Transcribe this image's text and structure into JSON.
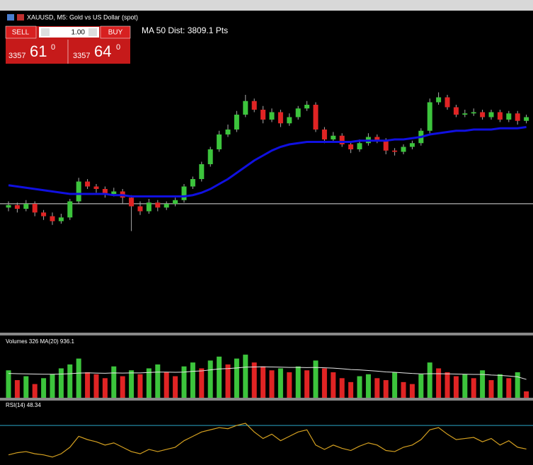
{
  "header": {
    "symbol": "XAUUSD, M5: Gold vs US Dollar (spot)"
  },
  "trade_panel": {
    "sell": "SELL",
    "lots": "1.00",
    "buy": "BUY",
    "bid_big": "3357",
    "bid_digits": "61",
    "bid_sup": "0",
    "ask_big": "3357",
    "ask_digits": "64",
    "ask_sup": "0"
  },
  "chart_data": [
    {
      "type": "candlestick",
      "annotation": "MA 50 Dist: 3809.1 Pts",
      "ylim": [
        3347.2,
        3373.2
      ],
      "up_color": "#3cc43c",
      "down_color": "#e02424",
      "bid_line": 3357.61,
      "candles": [
        [
          3357.3,
          3357.8,
          3357.0,
          3357.5
        ],
        [
          3357.5,
          3357.7,
          3356.9,
          3357.2
        ],
        [
          3357.2,
          3357.9,
          3357.0,
          3357.6
        ],
        [
          3357.6,
          3357.8,
          3356.6,
          3356.9
        ],
        [
          3356.9,
          3357.1,
          3356.3,
          3356.6
        ],
        [
          3356.6,
          3356.9,
          3355.9,
          3356.2
        ],
        [
          3356.2,
          3356.8,
          3356.0,
          3356.5
        ],
        [
          3356.5,
          3358.0,
          3356.3,
          3357.8
        ],
        [
          3357.8,
          3359.7,
          3357.6,
          3359.4
        ],
        [
          3359.4,
          3359.6,
          3358.8,
          3359.0
        ],
        [
          3359.0,
          3359.2,
          3358.5,
          3358.8
        ],
        [
          3358.8,
          3359.0,
          3358.1,
          3358.4
        ],
        [
          3358.4,
          3358.9,
          3358.2,
          3358.6
        ],
        [
          3358.6,
          3358.8,
          3357.6,
          3358.1
        ],
        [
          3358.1,
          3358.3,
          3355.4,
          3357.4
        ],
        [
          3357.4,
          3357.8,
          3356.7,
          3357.0
        ],
        [
          3357.0,
          3358.0,
          3356.8,
          3357.7
        ],
        [
          3357.7,
          3357.9,
          3357.0,
          3357.3
        ],
        [
          3357.3,
          3357.8,
          3357.1,
          3357.6
        ],
        [
          3357.6,
          3358.1,
          3357.4,
          3357.9
        ],
        [
          3357.9,
          3359.2,
          3357.7,
          3359.0
        ],
        [
          3359.0,
          3359.8,
          3358.8,
          3359.6
        ],
        [
          3359.6,
          3361.0,
          3359.4,
          3360.8
        ],
        [
          3360.8,
          3362.2,
          3360.6,
          3362.0
        ],
        [
          3362.0,
          3363.5,
          3361.8,
          3363.2
        ],
        [
          3363.2,
          3364.0,
          3363.0,
          3363.6
        ],
        [
          3363.6,
          3365.1,
          3363.4,
          3364.8
        ],
        [
          3364.8,
          3366.4,
          3364.6,
          3365.9
        ],
        [
          3365.9,
          3366.1,
          3365.0,
          3365.2
        ],
        [
          3365.2,
          3365.5,
          3364.1,
          3364.4
        ],
        [
          3364.4,
          3365.3,
          3364.2,
          3365.0
        ],
        [
          3365.0,
          3365.2,
          3363.8,
          3364.1
        ],
        [
          3364.1,
          3364.9,
          3363.9,
          3364.6
        ],
        [
          3364.6,
          3365.5,
          3364.4,
          3365.3
        ],
        [
          3365.3,
          3365.9,
          3365.1,
          3365.6
        ],
        [
          3365.6,
          3365.8,
          3363.4,
          3363.6
        ],
        [
          3363.6,
          3363.8,
          3362.5,
          3362.8
        ],
        [
          3362.8,
          3363.4,
          3362.6,
          3363.1
        ],
        [
          3363.1,
          3363.3,
          3362.2,
          3362.4
        ],
        [
          3362.4,
          3362.6,
          3361.7,
          3362.0
        ],
        [
          3362.0,
          3362.8,
          3361.8,
          3362.5
        ],
        [
          3362.5,
          3363.3,
          3362.3,
          3363.0
        ],
        [
          3363.0,
          3363.2,
          3362.5,
          3362.7
        ],
        [
          3362.7,
          3362.9,
          3361.6,
          3361.9
        ],
        [
          3361.9,
          3362.1,
          3361.5,
          3361.8
        ],
        [
          3361.8,
          3362.4,
          3361.6,
          3362.2
        ],
        [
          3362.2,
          3362.7,
          3362.0,
          3362.5
        ],
        [
          3362.5,
          3363.7,
          3362.3,
          3363.5
        ],
        [
          3363.5,
          3366.1,
          3363.3,
          3365.8
        ],
        [
          3365.8,
          3366.6,
          3365.6,
          3366.2
        ],
        [
          3366.2,
          3366.4,
          3365.2,
          3365.4
        ],
        [
          3365.4,
          3365.6,
          3364.6,
          3364.8
        ],
        [
          3364.8,
          3365.2,
          3364.6,
          3364.9
        ],
        [
          3364.9,
          3365.3,
          3364.7,
          3365.0
        ],
        [
          3365.0,
          3365.2,
          3364.4,
          3364.6
        ],
        [
          3364.6,
          3365.2,
          3364.4,
          3365.0
        ],
        [
          3365.0,
          3365.2,
          3364.2,
          3364.4
        ],
        [
          3364.4,
          3365.1,
          3364.2,
          3364.9
        ],
        [
          3364.9,
          3365.1,
          3364.0,
          3364.3
        ],
        [
          3364.3,
          3364.8,
          3364.1,
          3364.6
        ]
      ],
      "ma": {
        "color": "#1010e0",
        "values": [
          3359.1,
          3359.0,
          3358.9,
          3358.8,
          3358.7,
          3358.6,
          3358.5,
          3358.4,
          3358.4,
          3358.4,
          3358.4,
          3358.4,
          3358.3,
          3358.3,
          3358.2,
          3358.2,
          3358.2,
          3358.2,
          3358.2,
          3358.2,
          3358.2,
          3358.3,
          3358.5,
          3358.8,
          3359.2,
          3359.6,
          3360.1,
          3360.6,
          3361.1,
          3361.5,
          3361.9,
          3362.2,
          3362.4,
          3362.5,
          3362.6,
          3362.6,
          3362.6,
          3362.6,
          3362.6,
          3362.6,
          3362.7,
          3362.7,
          3362.7,
          3362.7,
          3362.8,
          3362.8,
          3362.9,
          3363.0,
          3363.2,
          3363.3,
          3363.4,
          3363.5,
          3363.5,
          3363.6,
          3363.6,
          3363.6,
          3363.7,
          3363.7,
          3363.7,
          3363.8
        ]
      }
    },
    {
      "type": "bar",
      "title": "Volumes 326 MA(20) 936.1",
      "ylim": [
        0,
        2600
      ],
      "up_color": "#3cc43c",
      "down_color": "#e02424",
      "ma_color": "#e8e8e8",
      "values": [
        1400,
        900,
        1100,
        700,
        1000,
        1200,
        1500,
        1700,
        2000,
        1300,
        1200,
        1000,
        1600,
        1100,
        1400,
        1200,
        1500,
        1700,
        1300,
        1100,
        1600,
        1800,
        1500,
        1900,
        2100,
        1700,
        2000,
        2200,
        1800,
        1600,
        1400,
        1500,
        1300,
        1600,
        1400,
        1900,
        1500,
        1300,
        1000,
        800,
        1100,
        1200,
        1000,
        900,
        1300,
        800,
        700,
        1200,
        1800,
        1500,
        1300,
        1100,
        1200,
        1000,
        1400,
        900,
        1200,
        1000,
        1300,
        326
      ],
      "ma_values": [
        1240,
        1230,
        1220,
        1210,
        1200,
        1200,
        1210,
        1230,
        1260,
        1270,
        1260,
        1250,
        1270,
        1260,
        1270,
        1270,
        1290,
        1310,
        1310,
        1300,
        1310,
        1350,
        1370,
        1420,
        1470,
        1490,
        1520,
        1560,
        1570,
        1580,
        1570,
        1560,
        1550,
        1550,
        1540,
        1550,
        1530,
        1510,
        1480,
        1440,
        1420,
        1390,
        1360,
        1320,
        1300,
        1270,
        1240,
        1220,
        1230,
        1230,
        1220,
        1210,
        1200,
        1190,
        1190,
        1160,
        1140,
        1110,
        1070,
        936.1
      ]
    },
    {
      "type": "line",
      "title": "RSI(14) 48.34",
      "ylim": [
        35,
        85
      ],
      "levels": [
        70
      ],
      "color": "#d4a020",
      "level_color": "#2aa7c7",
      "values": [
        43,
        45,
        46,
        44,
        43,
        41,
        44,
        50,
        60,
        57,
        55,
        52,
        54,
        50,
        46,
        44,
        48,
        46,
        48,
        50,
        56,
        60,
        64,
        66,
        68,
        67,
        70,
        72,
        64,
        58,
        62,
        56,
        60,
        64,
        66,
        52,
        48,
        52,
        49,
        47,
        51,
        54,
        52,
        47,
        46,
        50,
        52,
        57,
        66,
        68,
        62,
        57,
        58,
        59,
        55,
        58,
        52,
        56,
        50,
        48.34
      ]
    }
  ]
}
